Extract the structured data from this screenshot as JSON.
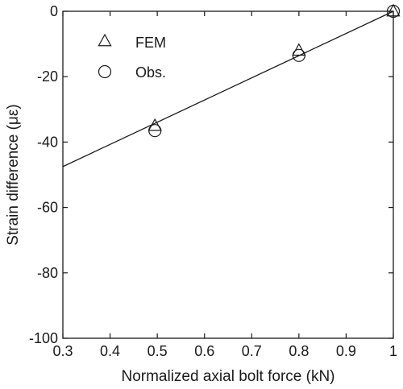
{
  "chart_data": {
    "type": "scatter",
    "xlabel": "Normalized axial bolt force (kN)",
    "ylabel": "Strain difference (με)",
    "xlim": [
      0.3,
      1.0
    ],
    "ylim": [
      -100,
      0
    ],
    "xticks": [
      "0.3",
      "0.4",
      "0.5",
      "0.6",
      "0.7",
      "0.8",
      "0.9",
      "1"
    ],
    "yticks": [
      "0",
      "-20",
      "-40",
      "-60",
      "-80",
      "-100"
    ],
    "grid": false,
    "legend_position": "top-left",
    "series": [
      {
        "name": "FEM",
        "marker": "triangle",
        "x": [
          0.495,
          0.8,
          1.0
        ],
        "y": [
          -35,
          -12,
          0
        ]
      },
      {
        "name": "Obs.",
        "marker": "circle",
        "x": [
          0.495,
          0.8,
          1.0
        ],
        "y": [
          -36.5,
          -13.5,
          0
        ]
      }
    ],
    "fit_line": {
      "x": [
        0.3,
        1.0
      ],
      "y": [
        -47.5,
        0
      ]
    },
    "colors": {
      "axis": "#1a1a1a",
      "marker": "#1a1a1a",
      "background": "#ffffff"
    }
  }
}
